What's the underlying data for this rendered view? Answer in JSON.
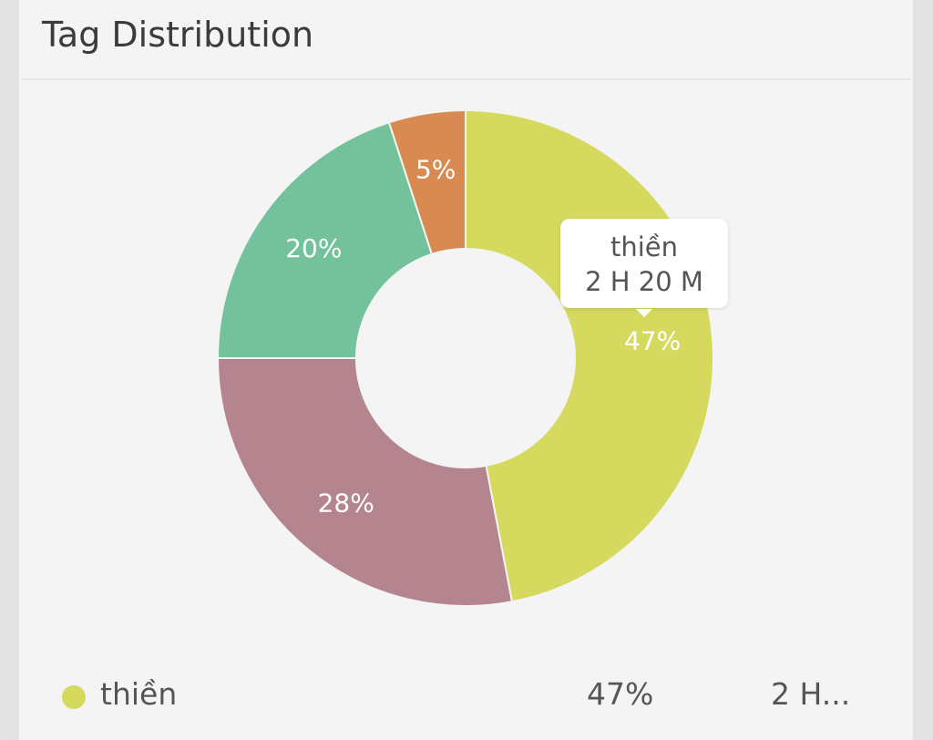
{
  "header": {
    "title": "Tag Distribution"
  },
  "chart_data": {
    "type": "pie",
    "variant": "donut",
    "title": "Tag Distribution",
    "slices": [
      {
        "label": "thiền",
        "percent": 47,
        "value_text": "2 H 20 M",
        "color": "#d5da5e"
      },
      {
        "label": "",
        "percent": 28,
        "color": "#b5858f"
      },
      {
        "label": "",
        "percent": 20,
        "color": "#73c29b"
      },
      {
        "label": "",
        "percent": 5,
        "color": "#d98a50"
      }
    ],
    "data_labels": [
      "47%",
      "28%",
      "20%",
      "5%"
    ]
  },
  "tooltip": {
    "label": "thiền",
    "value": "2 H 20 M"
  },
  "legend": [
    {
      "name": "thiền",
      "percent": "47%",
      "value": "2 H...",
      "color": "#d5da5e"
    }
  ]
}
